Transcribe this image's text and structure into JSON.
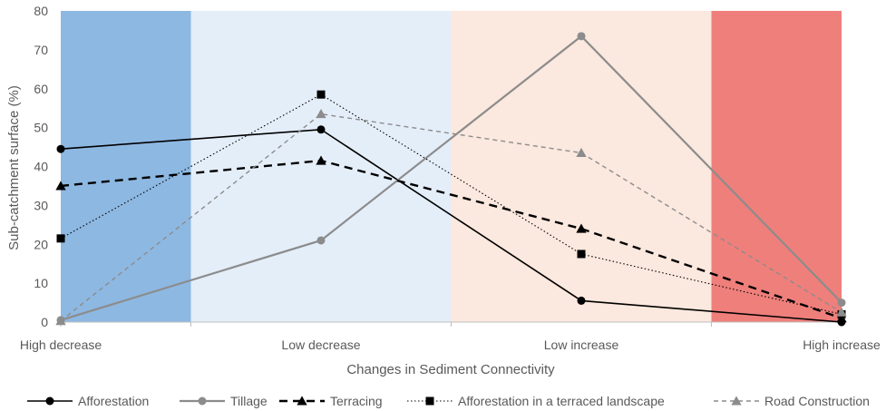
{
  "chart_data": {
    "type": "line",
    "categories": [
      "High decrease",
      "Low decrease",
      "Low increase",
      "High increase"
    ],
    "xlabel": "Changes in Sediment Connectivity",
    "ylabel": "Sub-catchment surface (%)",
    "ylim": [
      0,
      80
    ],
    "yticks": [
      0,
      10,
      20,
      30,
      40,
      50,
      60,
      70,
      80
    ],
    "grid": false,
    "legend_position": "bottom",
    "bands": [
      {
        "category": "High decrease",
        "color": "#8db8e2"
      },
      {
        "category": "Low decrease",
        "color": "#e4eef9"
      },
      {
        "category": "Low increase",
        "color": "#fbe8de"
      },
      {
        "category": "High increase",
        "color": "#ee7f7b"
      }
    ],
    "series": [
      {
        "name": "Afforestation",
        "values": [
          44.5,
          49.5,
          5.5,
          0
        ],
        "color": "#000000",
        "dash": "solid",
        "width": 1.6,
        "marker": "circle"
      },
      {
        "name": "Tillage",
        "values": [
          0.5,
          21,
          73.5,
          5
        ],
        "color": "#8c8c8c",
        "dash": "solid",
        "width": 2.2,
        "marker": "circle"
      },
      {
        "name": "Terracing",
        "values": [
          35,
          41.5,
          24,
          1
        ],
        "color": "#000000",
        "dash": "dash",
        "width": 2.4,
        "marker": "triangle"
      },
      {
        "name": "Afforestation in a terraced landscape",
        "values": [
          21.5,
          58.5,
          17.5,
          2
        ],
        "color": "#000000",
        "dash": "dot",
        "width": 1.1,
        "marker": "square"
      },
      {
        "name": "Road Construction",
        "values": [
          0.3,
          53.5,
          43.5,
          2.5
        ],
        "color": "#8c8c8c",
        "dash": "shortdash",
        "width": 1.4,
        "marker": "triangle"
      }
    ]
  }
}
